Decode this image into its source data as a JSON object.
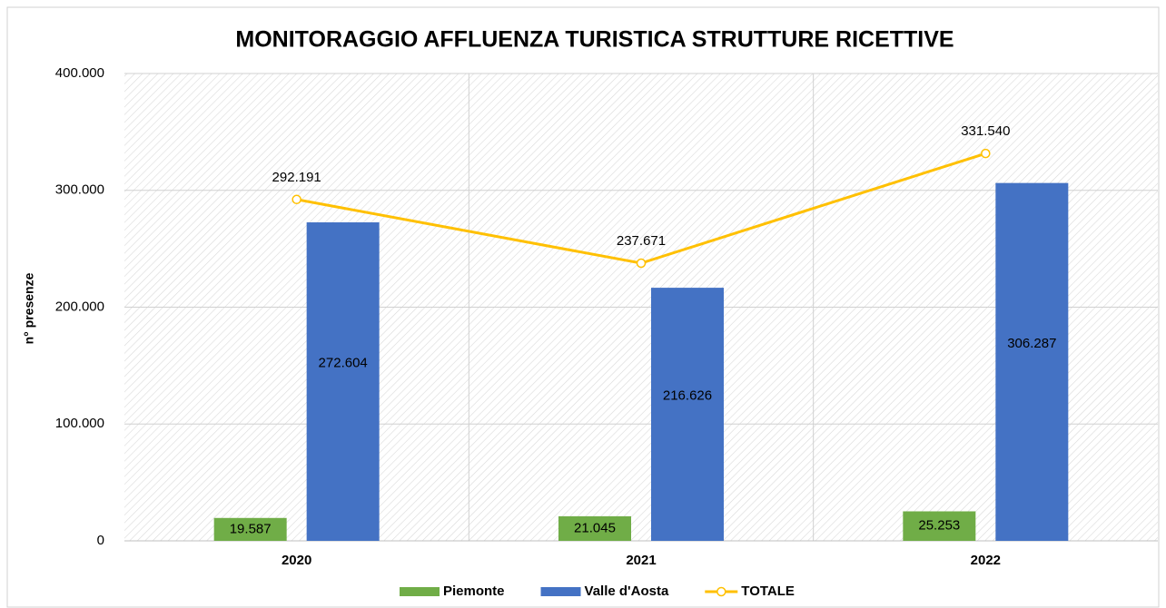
{
  "chart_data": {
    "type": "bar",
    "title": "MONITORAGGIO AFFLUENZA TURISTICA STRUTTURE RICETTIVE",
    "y_label": "n° presenze",
    "categories": [
      "2020",
      "2021",
      "2022"
    ],
    "series": [
      {
        "name": "Piemonte",
        "type": "bar",
        "color": "#70ad47",
        "values": [
          19587,
          21045,
          25253
        ],
        "value_labels": [
          "19.587",
          "21.045",
          "25.253"
        ]
      },
      {
        "name": "Valle d'Aosta",
        "type": "bar",
        "color": "#4472c4",
        "values": [
          272604,
          216626,
          306287
        ],
        "value_labels": [
          "272.604",
          "216.626",
          "306.287"
        ]
      },
      {
        "name": "TOTALE",
        "type": "line",
        "color": "#ffc000",
        "values": [
          292191,
          237671,
          331540
        ],
        "value_labels": [
          "292.191",
          "237.671",
          "331.540"
        ]
      }
    ],
    "ylim": [
      0,
      400000
    ],
    "yticks": [
      0,
      {
        "value": 100000,
        "label": "100.000"
      },
      {
        "value": 200000,
        "label": "200.000"
      },
      {
        "value": 300000,
        "label": "300.000"
      },
      {
        "value": 400000,
        "label": "400.000"
      }
    ],
    "grid": true,
    "legend": "bottom"
  }
}
